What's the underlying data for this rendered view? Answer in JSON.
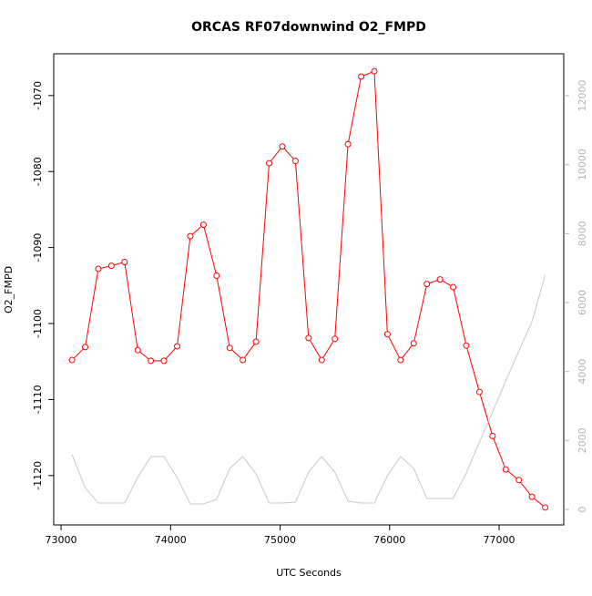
{
  "chart_data": {
    "type": "line",
    "title": "ORCAS RF07downwind O2_FMPD",
    "x_label": "UTC Seconds",
    "y_label": "O2_FMPD",
    "x": [
      73100,
      73220,
      73340,
      73460,
      73580,
      73700,
      73820,
      73940,
      74060,
      74180,
      74300,
      74420,
      74540,
      74660,
      74780,
      74900,
      75020,
      75140,
      75260,
      75380,
      75500,
      75620,
      75740,
      75860,
      75980,
      76100,
      76220,
      76340,
      76460,
      76580,
      76700,
      76820,
      76940,
      77060,
      77180,
      77300,
      77420
    ],
    "series": [
      {
        "color": "#ff0000",
        "markers": true,
        "values": [
          -1104.8,
          -1103.1,
          -1092.8,
          -1092.4,
          -1091.9,
          -1103.5,
          -1104.9,
          -1104.9,
          -1103.0,
          -1088.5,
          -1087.0,
          -1093.7,
          -1103.2,
          -1104.8,
          -1102.4,
          -1078.9,
          -1076.7,
          -1078.6,
          -1101.9,
          -1104.8,
          -1102.0,
          -1076.4,
          -1067.5,
          -1066.8,
          -1101.4,
          -1104.8,
          -1102.6,
          -1094.8,
          -1094.2,
          -1095.2,
          -1102.9,
          -1109.0,
          -1114.8,
          -1119.2,
          -1120.6,
          -1122.8,
          -1124.2
        ]
      },
      {
        "color": "#c8c8c8",
        "markers": false,
        "axis": "y2",
        "values": [
          1586,
          634,
          185,
          185,
          185,
          925,
          1533,
          1533,
          925,
          159,
          159,
          291,
          1189,
          1533,
          1031,
          185,
          185,
          211,
          1084,
          1533,
          1084,
          238,
          185,
          185,
          978,
          1533,
          1189,
          317,
          317,
          317,
          1057,
          1956,
          2828,
          3727,
          4599,
          5445,
          6793
        ]
      }
    ],
    "xlim": [
      72933,
      77590
    ],
    "xticks": [
      73000,
      74000,
      75000,
      76000,
      77000
    ],
    "ylim": [
      -1126.5,
      -1064.5
    ],
    "yticks": [
      -1120,
      -1110,
      -1100,
      -1090,
      -1080,
      -1070
    ],
    "y2lim": [
      -449,
      13216
    ],
    "y2ticks": [
      0,
      2000,
      4000,
      6000,
      8000,
      10000,
      12000
    ],
    "y2_color": "#b4b4b4"
  }
}
